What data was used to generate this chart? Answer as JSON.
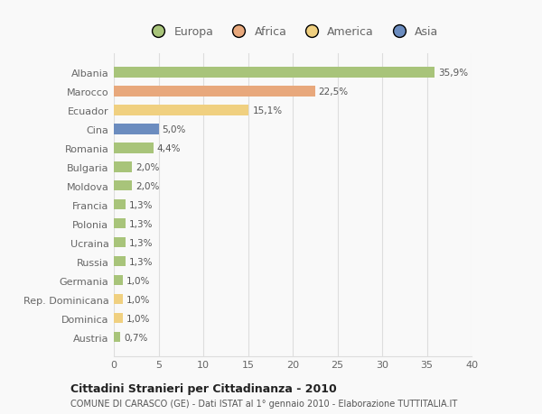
{
  "countries": [
    "Albania",
    "Marocco",
    "Ecuador",
    "Cina",
    "Romania",
    "Bulgaria",
    "Moldova",
    "Francia",
    "Polonia",
    "Ucraina",
    "Russia",
    "Germania",
    "Rep. Dominicana",
    "Dominica",
    "Austria"
  ],
  "values": [
    35.9,
    22.5,
    15.1,
    5.0,
    4.4,
    2.0,
    2.0,
    1.3,
    1.3,
    1.3,
    1.3,
    1.0,
    1.0,
    1.0,
    0.7
  ],
  "labels": [
    "35,9%",
    "22,5%",
    "15,1%",
    "5,0%",
    "4,4%",
    "2,0%",
    "2,0%",
    "1,3%",
    "1,3%",
    "1,3%",
    "1,3%",
    "1,0%",
    "1,0%",
    "1,0%",
    "0,7%"
  ],
  "colors": [
    "#a8c47a",
    "#e8a87c",
    "#f0d080",
    "#6b8cbf",
    "#a8c47a",
    "#a8c47a",
    "#a8c47a",
    "#a8c47a",
    "#a8c47a",
    "#a8c47a",
    "#a8c47a",
    "#a8c47a",
    "#f0d080",
    "#f0d080",
    "#a8c47a"
  ],
  "legend_labels": [
    "Europa",
    "Africa",
    "America",
    "Asia"
  ],
  "legend_colors": [
    "#a8c47a",
    "#e8a87c",
    "#f0d080",
    "#6b8cbf"
  ],
  "xlim": [
    0,
    40
  ],
  "xticks": [
    0,
    5,
    10,
    15,
    20,
    25,
    30,
    35,
    40
  ],
  "title": "Cittadini Stranieri per Cittadinanza - 2010",
  "subtitle": "COMUNE DI CARASCO (GE) - Dati ISTAT al 1° gennaio 2010 - Elaborazione TUTTITALIA.IT",
  "background_color": "#f9f9f9",
  "grid_color": "#dddddd",
  "bar_text_color": "#555555",
  "axis_text_color": "#666666"
}
